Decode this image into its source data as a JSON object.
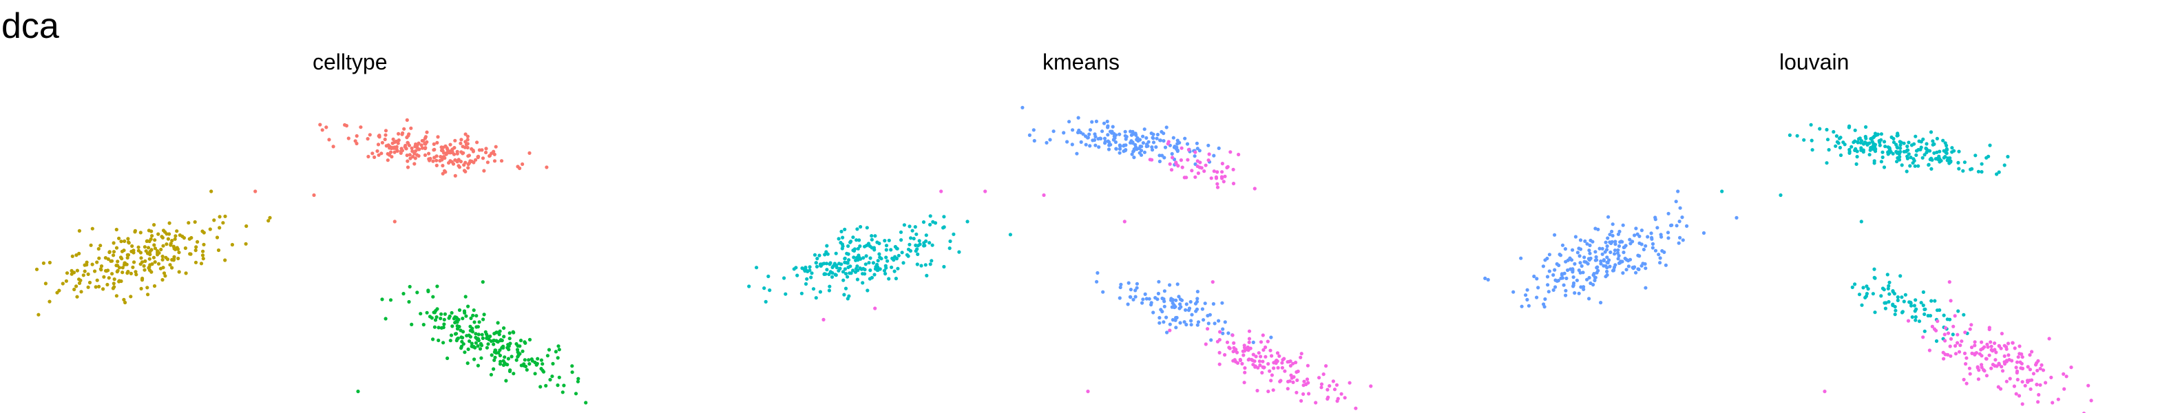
{
  "figure": {
    "title": "dca"
  },
  "colors": {
    "salmon": "#F8766D",
    "olive": "#B8A000",
    "green": "#00BA38",
    "cyan": "#00BFC4",
    "blue": "#619CFF",
    "magenta": "#F564E3"
  },
  "chart_data": [
    {
      "type": "scatter",
      "title": "celltype",
      "xlabel": "",
      "ylabel": "",
      "grid": false,
      "axes": false,
      "legend": "none",
      "xlim": [
        -4.7,
        4.3
      ],
      "ylim": [
        -4.5,
        3.8
      ],
      "clusters": [
        {
          "color": "#F8766D",
          "center": [
            0.8,
            2.2
          ],
          "spread": [
            0.6,
            0.28
          ],
          "rho": -0.55,
          "n": 220
        },
        {
          "color": "#B8A000",
          "center": [
            -3.2,
            -0.7
          ],
          "spread": [
            0.55,
            0.5
          ],
          "rho": 0.6,
          "n": 240
        },
        {
          "color": "#00BA38",
          "center": [
            1.6,
            -2.9
          ],
          "spread": [
            0.55,
            0.6
          ],
          "rho": -0.8,
          "n": 240
        }
      ],
      "outliers": [
        {
          "x": -1.6,
          "y": 1.1,
          "color": "#F8766D"
        },
        {
          "x": -0.8,
          "y": 1.0,
          "color": "#F8766D"
        },
        {
          "x": 0.3,
          "y": 0.3,
          "color": "#F8766D"
        },
        {
          "x": -2.2,
          "y": 1.1,
          "color": "#B8A000"
        },
        {
          "x": -1.4,
          "y": 0.4,
          "color": "#B8A000"
        },
        {
          "x": 1.5,
          "y": -1.3,
          "color": "#00BA38"
        },
        {
          "x": -0.2,
          "y": -4.2,
          "color": "#00BA38"
        },
        {
          "x": 2.9,
          "y": -4.5,
          "color": "#00BA38"
        }
      ]
    },
    {
      "type": "scatter",
      "title": "kmeans",
      "xlabel": "",
      "ylabel": "",
      "grid": false,
      "axes": false,
      "legend": "none",
      "xlim": [
        -4.7,
        4.3
      ],
      "ylim": [
        -4.5,
        3.8
      ],
      "clusters": [
        {
          "color": "#619CFF",
          "center": [
            0.3,
            2.4
          ],
          "spread": [
            0.5,
            0.25
          ],
          "rho": -0.5,
          "n": 170
        },
        {
          "color": "#F564E3",
          "center": [
            1.4,
            1.7
          ],
          "spread": [
            0.35,
            0.3
          ],
          "rho": -0.4,
          "n": 50
        },
        {
          "color": "#00BFC4",
          "center": [
            -3.2,
            -0.7
          ],
          "spread": [
            0.55,
            0.5
          ],
          "rho": 0.6,
          "n": 240
        },
        {
          "color": "#619CFF",
          "center": [
            1.0,
            -2.0
          ],
          "spread": [
            0.45,
            0.4
          ],
          "rho": -0.7,
          "n": 100
        },
        {
          "color": "#F564E3",
          "center": [
            2.3,
            -3.5
          ],
          "spread": [
            0.45,
            0.45
          ],
          "rho": -0.7,
          "n": 140
        }
      ],
      "outliers": [
        {
          "x": -1.6,
          "y": 1.1,
          "color": "#F564E3"
        },
        {
          "x": -0.8,
          "y": 1.0,
          "color": "#F564E3"
        },
        {
          "x": 0.3,
          "y": 0.3,
          "color": "#F564E3"
        },
        {
          "x": -2.2,
          "y": 1.1,
          "color": "#F564E3"
        },
        {
          "x": -3.8,
          "y": -2.3,
          "color": "#F564E3"
        },
        {
          "x": -3.1,
          "y": -2.0,
          "color": "#F564E3"
        },
        {
          "x": 1.5,
          "y": -1.3,
          "color": "#F564E3"
        },
        {
          "x": -0.2,
          "y": -4.2,
          "color": "#F564E3"
        },
        {
          "x": 2.9,
          "y": -4.5,
          "color": "#F564E3"
        }
      ]
    },
    {
      "type": "scatter",
      "title": "louvain",
      "xlabel": "",
      "ylabel": "",
      "grid": false,
      "axes": false,
      "legend": "none",
      "xlim": [
        -4.7,
        4.3
      ],
      "ylim": [
        -4.5,
        3.8
      ],
      "clusters": [
        {
          "color": "#00BFC4",
          "center": [
            0.8,
            2.2
          ],
          "spread": [
            0.6,
            0.28
          ],
          "rho": -0.55,
          "n": 220
        },
        {
          "color": "#619CFF",
          "center": [
            -3.2,
            -0.7
          ],
          "spread": [
            0.55,
            0.5
          ],
          "rho": 0.6,
          "n": 240
        },
        {
          "color": "#00BFC4",
          "center": [
            0.9,
            -1.9
          ],
          "spread": [
            0.4,
            0.35
          ],
          "rho": -0.7,
          "n": 80
        },
        {
          "color": "#F564E3",
          "center": [
            2.2,
            -3.4
          ],
          "spread": [
            0.5,
            0.5
          ],
          "rho": -0.7,
          "n": 160
        }
      ],
      "outliers": [
        {
          "x": -1.6,
          "y": 1.1,
          "color": "#00BFC4"
        },
        {
          "x": -0.8,
          "y": 1.0,
          "color": "#00BFC4"
        },
        {
          "x": 0.3,
          "y": 0.3,
          "color": "#00BFC4"
        },
        {
          "x": -2.2,
          "y": 1.1,
          "color": "#619CFF"
        },
        {
          "x": -1.4,
          "y": 0.4,
          "color": "#619CFF"
        },
        {
          "x": 1.5,
          "y": -1.3,
          "color": "#F564E3"
        },
        {
          "x": -0.2,
          "y": -4.2,
          "color": "#F564E3"
        },
        {
          "x": 2.9,
          "y": -4.5,
          "color": "#F564E3"
        }
      ]
    }
  ]
}
